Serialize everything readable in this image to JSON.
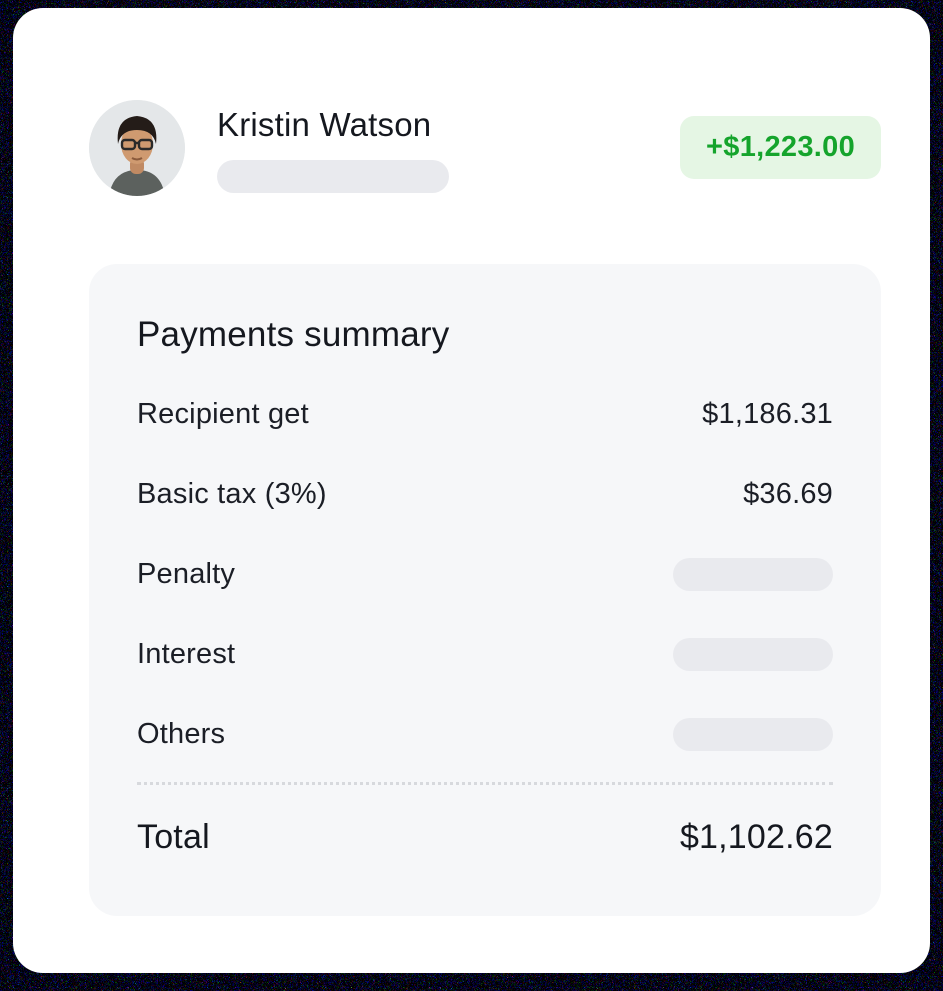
{
  "header": {
    "name": "Kristin Watson",
    "amount": "+$1,223.00"
  },
  "summary": {
    "title": "Payments summary",
    "rows": [
      {
        "label": "Recipient get",
        "value": "$1,186.31",
        "placeholder": false
      },
      {
        "label": "Basic tax (3%)",
        "value": "$36.69",
        "placeholder": false
      },
      {
        "label": "Penalty",
        "value": "",
        "placeholder": true
      },
      {
        "label": "Interest",
        "value": "",
        "placeholder": true
      },
      {
        "label": "Others",
        "value": "",
        "placeholder": true
      }
    ],
    "total_label": "Total",
    "total_value": "$1,102.62"
  },
  "icons": {
    "avatar": "user-photo"
  },
  "colors": {
    "card_bg": "#ffffff",
    "panel_bg": "#f6f7f9",
    "skeleton": "#e9eaee",
    "badge_bg": "#e5f6e4",
    "badge_text": "#15a42c",
    "noise_bg": "#07070f"
  }
}
